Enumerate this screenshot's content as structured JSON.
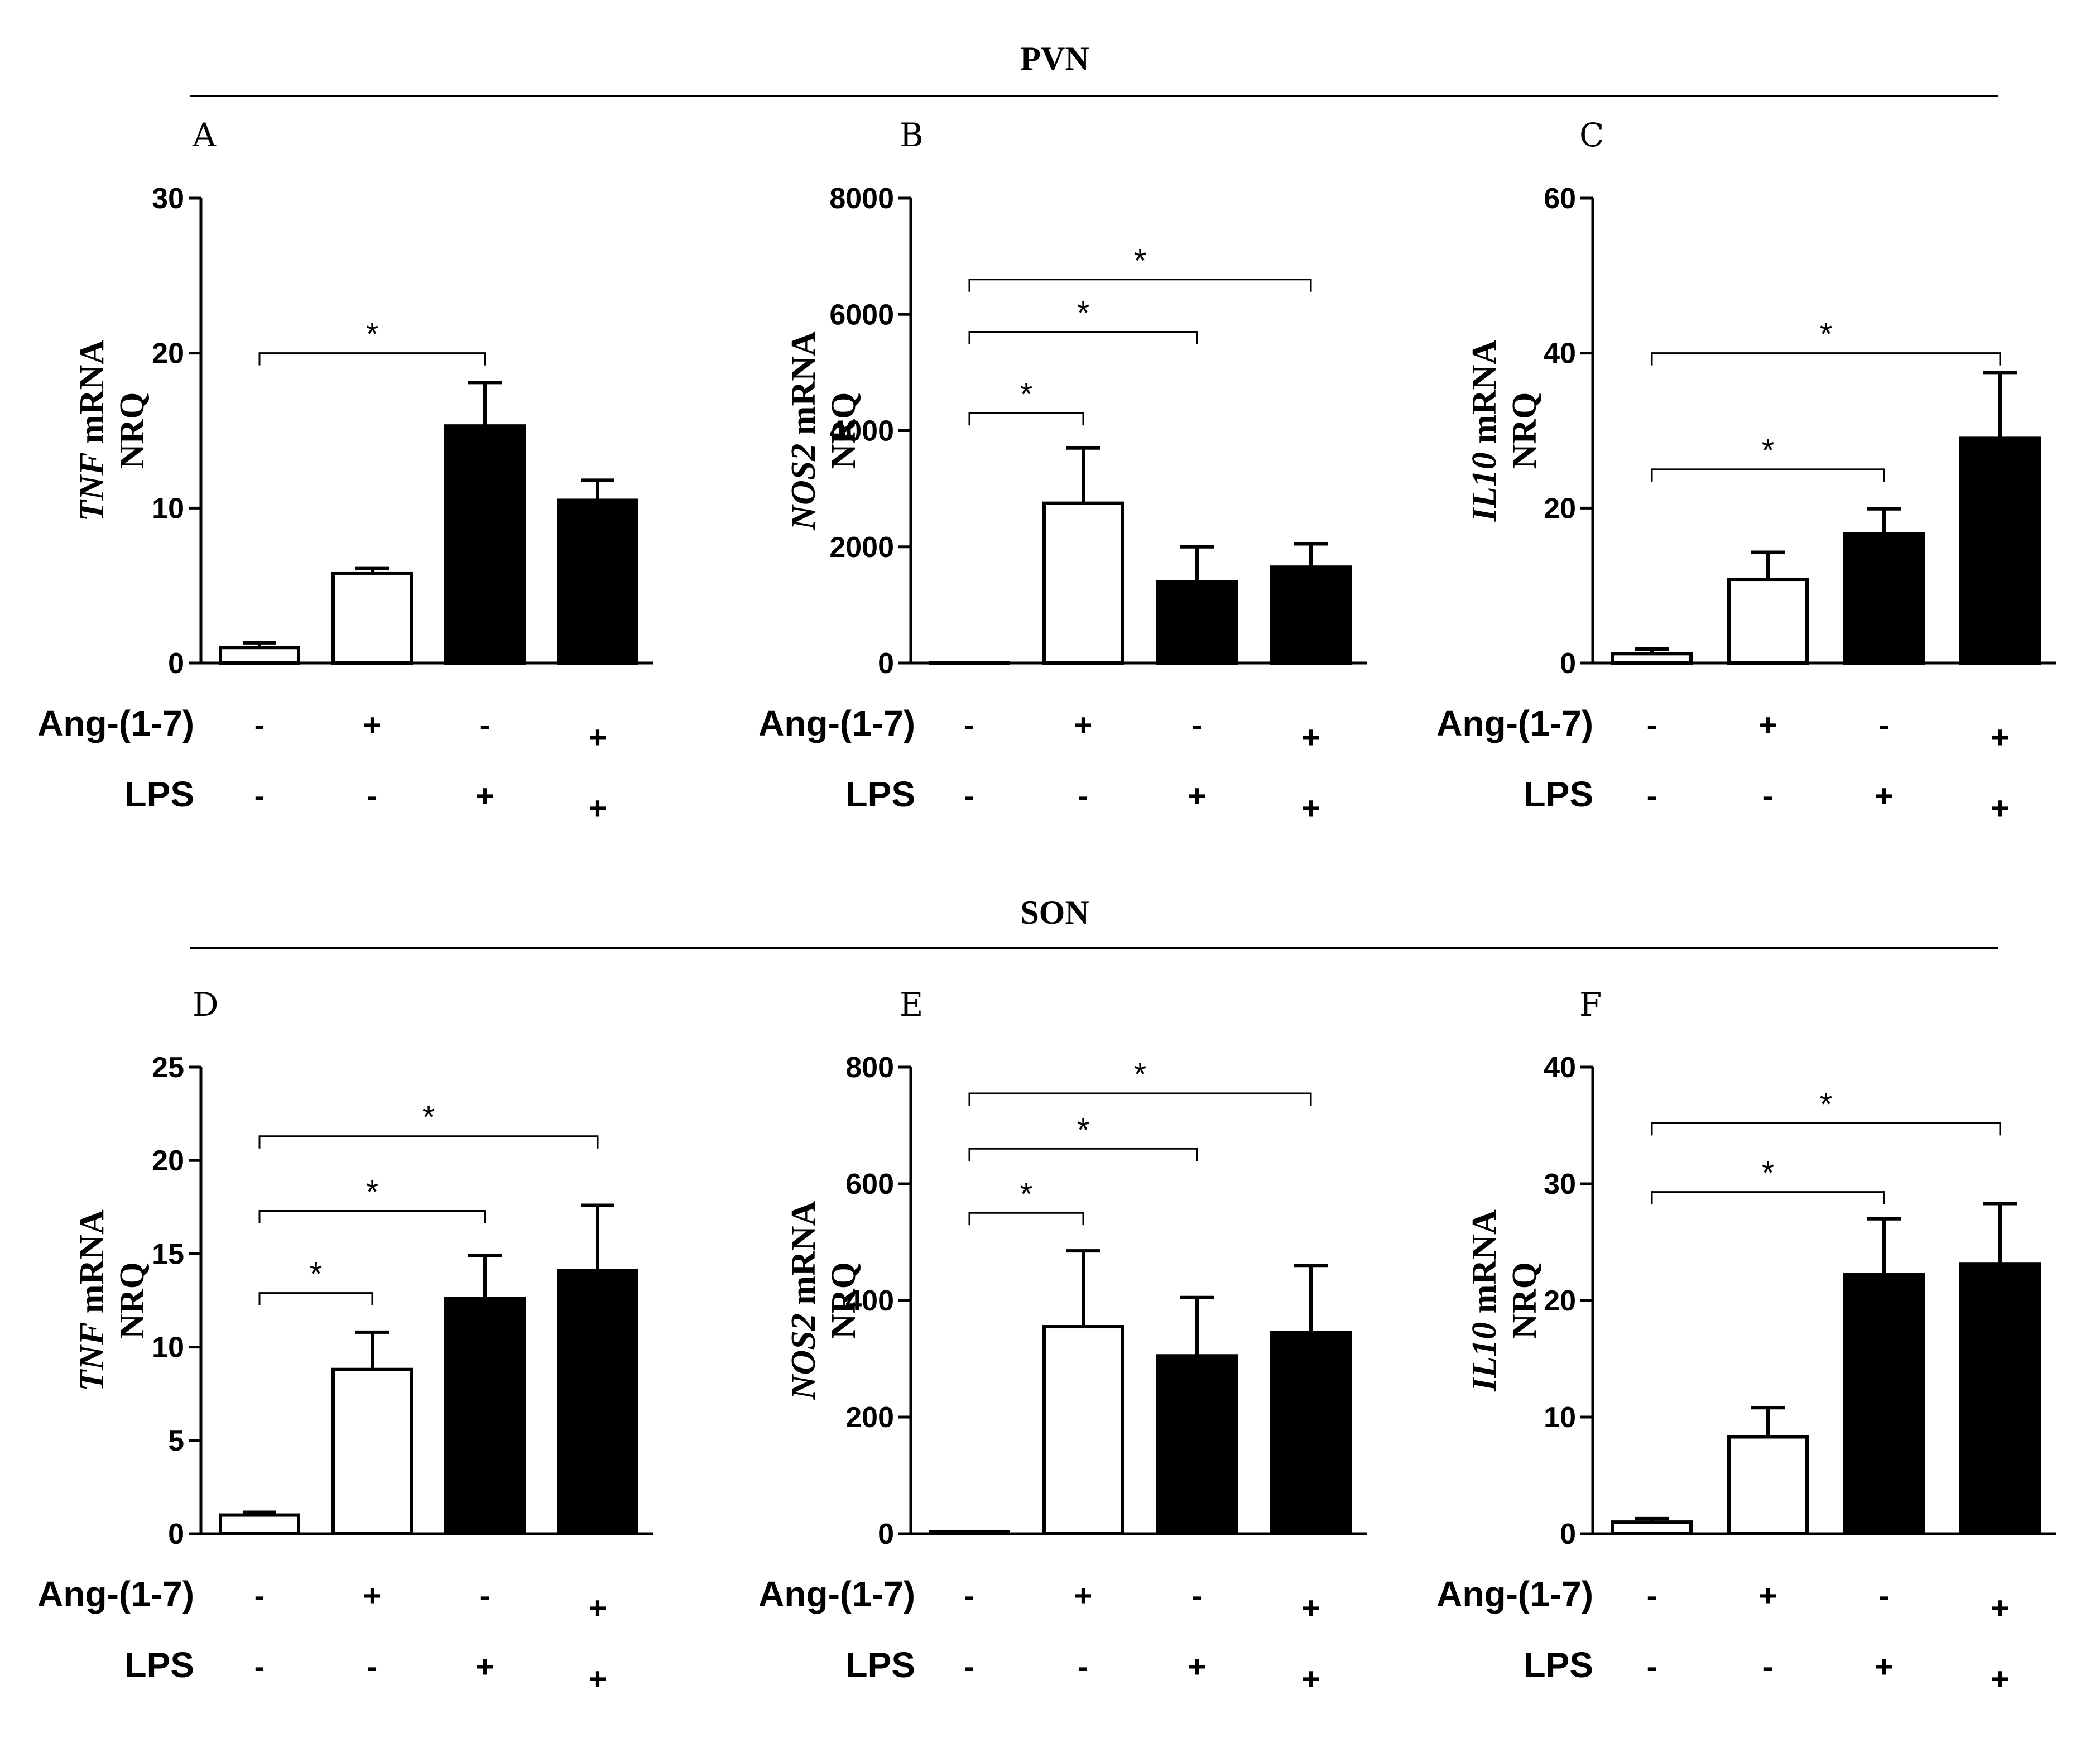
{
  "figure": {
    "sections": [
      {
        "title": "PVN"
      },
      {
        "title": "SON"
      }
    ],
    "conditions": {
      "row_labels": [
        "Ang-(1-7)",
        "LPS"
      ],
      "ang": [
        "-",
        "+",
        "-",
        "+"
      ],
      "lps": [
        "-",
        "-",
        "+",
        "+"
      ],
      "bar_fill": [
        "#ffffff",
        "#ffffff",
        "#000000",
        "#000000"
      ]
    }
  },
  "chart_data": [
    {
      "type": "bar",
      "panel": "A",
      "section": "PVN",
      "gene": "TNF",
      "ylabel_rest": " mRNA",
      "ylabel_line2": "NRQ",
      "categories": [
        "Ang-(1-7) - / LPS -",
        "Ang-(1-7) + / LPS -",
        "Ang-(1-7) - / LPS +",
        "Ang-(1-7) + / LPS +"
      ],
      "values": [
        1.0,
        5.8,
        15.3,
        10.5
      ],
      "errors": [
        0.3,
        0.3,
        2.8,
        1.3
      ],
      "ylim": [
        0,
        30
      ],
      "yticks": [
        0,
        10,
        20,
        30
      ],
      "significance": [
        {
          "from": 0,
          "to": 2,
          "y": 20,
          "label": "*"
        }
      ]
    },
    {
      "type": "bar",
      "panel": "B",
      "section": "PVN",
      "gene": "NOS2",
      "ylabel_rest": " mRNA",
      "ylabel_line2": "NRQ",
      "categories": [
        "Ang-(1-7) - / LPS -",
        "Ang-(1-7) + / LPS -",
        "Ang-(1-7) - / LPS +",
        "Ang-(1-7) + / LPS +"
      ],
      "values": [
        5,
        2750,
        1400,
        1650
      ],
      "errors": [
        0,
        950,
        600,
        400
      ],
      "ylim": [
        0,
        8000
      ],
      "yticks": [
        0,
        2000,
        4000,
        6000,
        8000
      ],
      "significance": [
        {
          "from": 0,
          "to": 1,
          "y": 4300,
          "label": "*"
        },
        {
          "from": 0,
          "to": 2,
          "y": 5700,
          "label": "*"
        },
        {
          "from": 0,
          "to": 3,
          "y": 6600,
          "label": "*"
        }
      ]
    },
    {
      "type": "bar",
      "panel": "C",
      "section": "PVN",
      "gene": "IL10",
      "ylabel_rest": " mRNA",
      "ylabel_line2": "NRQ",
      "categories": [
        "Ang-(1-7) - / LPS -",
        "Ang-(1-7) + / LPS -",
        "Ang-(1-7) - / LPS +",
        "Ang-(1-7) + / LPS +"
      ],
      "values": [
        1.2,
        10.8,
        16.7,
        29.0
      ],
      "errors": [
        0.6,
        3.5,
        3.2,
        8.5
      ],
      "ylim": [
        0,
        60
      ],
      "yticks": [
        0,
        20,
        40,
        60
      ],
      "significance": [
        {
          "from": 0,
          "to": 2,
          "y": 25,
          "label": "*"
        },
        {
          "from": 0,
          "to": 3,
          "y": 40,
          "label": "*"
        }
      ]
    },
    {
      "type": "bar",
      "panel": "D",
      "section": "SON",
      "gene": "TNF",
      "ylabel_rest": " mRNA",
      "ylabel_line2": "NRQ",
      "categories": [
        "Ang-(1-7) - / LPS -",
        "Ang-(1-7) + / LPS -",
        "Ang-(1-7) - / LPS +",
        "Ang-(1-7) + / LPS +"
      ],
      "values": [
        1.0,
        8.8,
        12.6,
        14.1
      ],
      "errors": [
        0.15,
        2.0,
        2.3,
        3.5
      ],
      "ylim": [
        0,
        25
      ],
      "yticks": [
        0,
        5,
        10,
        15,
        20,
        25
      ],
      "significance": [
        {
          "from": 0,
          "to": 1,
          "y": 12.9,
          "label": "*"
        },
        {
          "from": 0,
          "to": 2,
          "y": 17.3,
          "label": "*"
        },
        {
          "from": 0,
          "to": 3,
          "y": 21.3,
          "label": "*"
        }
      ]
    },
    {
      "type": "bar",
      "panel": "E",
      "section": "SON",
      "gene": "NOS2",
      "ylabel_rest": " mRNA",
      "ylabel_line2": "NRQ",
      "categories": [
        "Ang-(1-7) - / LPS -",
        "Ang-(1-7) + / LPS -",
        "Ang-(1-7) - / LPS +",
        "Ang-(1-7) + / LPS +"
      ],
      "values": [
        3,
        355,
        305,
        345
      ],
      "errors": [
        0,
        130,
        100,
        115
      ],
      "ylim": [
        0,
        800
      ],
      "yticks": [
        0,
        200,
        400,
        600,
        800
      ],
      "significance": [
        {
          "from": 0,
          "to": 1,
          "y": 550,
          "label": "*"
        },
        {
          "from": 0,
          "to": 2,
          "y": 660,
          "label": "*"
        },
        {
          "from": 0,
          "to": 3,
          "y": 755,
          "label": "*"
        }
      ]
    },
    {
      "type": "bar",
      "panel": "F",
      "section": "SON",
      "gene": "IL10",
      "ylabel_rest": " mRNA",
      "ylabel_line2": "NRQ",
      "categories": [
        "Ang-(1-7) - / LPS -",
        "Ang-(1-7) + / LPS -",
        "Ang-(1-7) - / LPS +",
        "Ang-(1-7) + / LPS +"
      ],
      "values": [
        1.0,
        8.3,
        22.2,
        23.1
      ],
      "errors": [
        0.3,
        2.5,
        4.8,
        5.2
      ],
      "ylim": [
        0,
        40
      ],
      "yticks": [
        0,
        10,
        20,
        30,
        40
      ],
      "significance": [
        {
          "from": 0,
          "to": 2,
          "y": 29.3,
          "label": "*"
        },
        {
          "from": 0,
          "to": 3,
          "y": 35.2,
          "label": "*"
        }
      ]
    }
  ]
}
